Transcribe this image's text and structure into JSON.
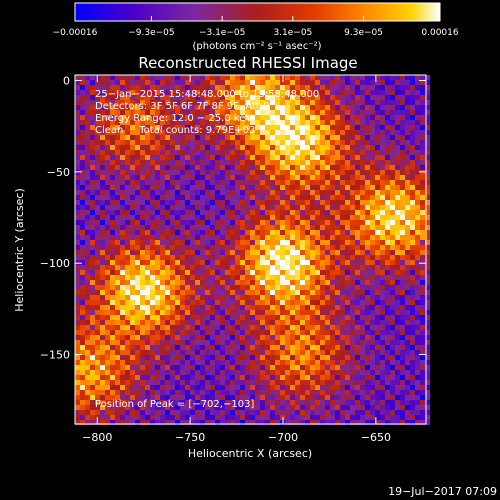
{
  "chart_data": {
    "type": "heatmap",
    "title": "Reconstructed RHESSI Image",
    "xlabel": "Heliocentric X (arcsec)",
    "ylabel": "Heliocentric Y (arcsec)",
    "xlim": [
      -812,
      -623
    ],
    "ylim": [
      -188,
      3
    ],
    "x_ticks": [
      -800,
      -750,
      -700,
      -650
    ],
    "y_ticks": [
      0,
      -50,
      -100,
      -150
    ],
    "x_tick_labels": [
      "−800",
      "−750",
      "−700",
      "−650"
    ],
    "y_tick_labels": [
      "0",
      "−50",
      "−100",
      "−150"
    ],
    "colorbar": {
      "min": -0.00016,
      "max": 0.00016,
      "tick_values": [
        -0.00016,
        -9.3e-05,
        -3.1e-05,
        3.1e-05,
        9.3e-05,
        0.00016
      ],
      "tick_labels": [
        "−0.00016",
        "−9.3e−05",
        "−3.1e−05",
        "3.1e−05",
        "9.3e−05",
        "0.00016"
      ],
      "units": "(photons cm⁻² s⁻¹ asec⁻²)",
      "colormap": [
        "#0000ff",
        "#4b00c8",
        "#7d28a0",
        "#aa1e1e",
        "#e63c00",
        "#ff8c00",
        "#ffd200",
        "#ffffff"
      ]
    },
    "annotations": [
      "25−Jan−2015 15:48:48.000 to 15:58:48.000",
      "Detectors: 3F 5F 6F 7F 8F 9F, Att 0",
      "Energy Range: 12.0 − 25.0 keV",
      "Clean     Total counts: 9.79E+03"
    ],
    "peak_label": "Position of Peak = [−702,−103]",
    "peak_position": [
      -702,
      -103
    ],
    "image_brightness_regions": [
      {
        "x": -775,
        "y": -115,
        "level": 0.95
      },
      {
        "x": -700,
        "y": -100,
        "level": 1.0
      },
      {
        "x": -640,
        "y": -75,
        "level": 0.9
      },
      {
        "x": -690,
        "y": -35,
        "level": 0.85
      },
      {
        "x": -780,
        "y": -25,
        "level": 0.55
      },
      {
        "x": -715,
        "y": -10,
        "level": 0.75
      },
      {
        "x": -805,
        "y": -160,
        "level": 0.7
      },
      {
        "x": -690,
        "y": -150,
        "level": 0.6
      }
    ]
  },
  "footer": {
    "timestamp": "19−Jul−2017 07:09"
  }
}
